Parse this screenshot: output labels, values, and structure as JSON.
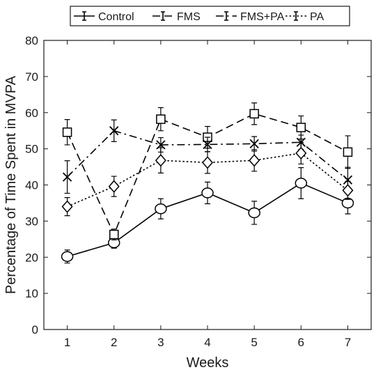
{
  "chart_data": {
    "type": "line",
    "title": "",
    "xlabel": "Weeks",
    "ylabel": "Percentage of Time Spent in MVPA",
    "x": [
      1,
      2,
      3,
      4,
      5,
      6,
      7
    ],
    "xlim": [
      0.5,
      7.5
    ],
    "ylim": [
      0,
      80
    ],
    "yticks": [
      0,
      10,
      20,
      30,
      40,
      50,
      60,
      70,
      80
    ],
    "grid": false,
    "legend_position": "top",
    "series": [
      {
        "name": "Control",
        "line_style": "solid",
        "marker": "circle",
        "color": "#000000",
        "values": [
          20.2,
          24.0,
          33.4,
          37.8,
          32.3,
          40.5,
          35.0
        ],
        "errors": [
          1.8,
          1.5,
          2.8,
          3.0,
          3.2,
          4.3,
          3.0
        ]
      },
      {
        "name": "FMS",
        "line_style": "dashed",
        "marker": "square",
        "color": "#000000",
        "values": [
          54.6,
          26.3,
          58.2,
          53.2,
          59.7,
          55.9,
          49.1
        ],
        "errors": [
          3.5,
          1.5,
          3.2,
          3.0,
          3.0,
          3.2,
          4.5
        ]
      },
      {
        "name": "FMS+PA",
        "line_style": "dashdot",
        "marker": "x",
        "color": "#000000",
        "values": [
          42.2,
          55.0,
          51.1,
          51.2,
          51.4,
          51.8,
          41.4
        ],
        "errors": [
          4.5,
          3.0,
          2.0,
          2.0,
          2.0,
          2.0,
          3.5
        ]
      },
      {
        "name": "PA",
        "line_style": "dotted",
        "marker": "diamond",
        "color": "#000000",
        "values": [
          34.0,
          39.6,
          46.8,
          46.2,
          46.8,
          48.8,
          38.5
        ],
        "errors": [
          2.5,
          2.8,
          3.5,
          3.0,
          3.0,
          3.0,
          2.5
        ]
      }
    ]
  }
}
